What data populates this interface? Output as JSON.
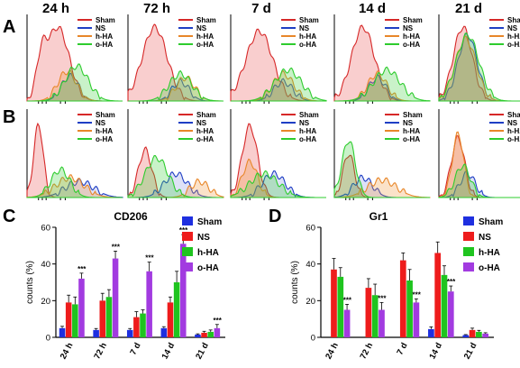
{
  "panel_letters": {
    "a": "A",
    "b": "B",
    "c": "C",
    "d": "D"
  },
  "timepoints": [
    "24 h",
    "72 h",
    "7 d",
    "14 d",
    "21 d"
  ],
  "histogram_legend": [
    "Sham",
    "NS",
    "h-HA",
    "o-HA"
  ],
  "colors": {
    "sham": "#d62828",
    "ns": "#1f3fc4",
    "hha": "#e8872a",
    "oha": "#2ecc2e",
    "bar_sham": "#1e2fe0",
    "bar_ns": "#ee1c1c",
    "bar_hha": "#1fc41f",
    "bar_oha": "#a23be0"
  },
  "chart_data": [
    {
      "type": "bar",
      "panel": "C",
      "title": "CD206",
      "ylabel": "counts (%)",
      "xlabel": "",
      "ylim": [
        0,
        60
      ],
      "yticks": [
        "0",
        "20",
        "40",
        "60"
      ],
      "categories": [
        "24 h",
        "72 h",
        "7 d",
        "14 d",
        "21 d"
      ],
      "series": [
        {
          "name": "Sham",
          "values": [
            5,
            4,
            4,
            5,
            1.5
          ],
          "errors": [
            1,
            0.8,
            0.8,
            0.8,
            0.4
          ]
        },
        {
          "name": "NS",
          "values": [
            19,
            20,
            11,
            19,
            2.5
          ],
          "errors": [
            4,
            4,
            3,
            3,
            0.8
          ]
        },
        {
          "name": "h-HA",
          "values": [
            18,
            22,
            13,
            30,
            3
          ],
          "errors": [
            4,
            4,
            2,
            6,
            1
          ]
        },
        {
          "name": "o-HA",
          "values": [
            32,
            43,
            36,
            51,
            5
          ],
          "errors": [
            3,
            4,
            5,
            5,
            2
          ]
        }
      ],
      "significance": [
        "***",
        "***",
        "***",
        "***",
        "***"
      ],
      "legend": [
        "Sham",
        "NS",
        "h-HA",
        "o-HA"
      ]
    },
    {
      "type": "bar",
      "panel": "D",
      "title": "Gr1",
      "ylabel": "counts (%)",
      "xlabel": "",
      "ylim": [
        0,
        60
      ],
      "yticks": [
        "0",
        "20",
        "40",
        "60"
      ],
      "categories": [
        "24 h",
        "72 h",
        "7 d",
        "14 d",
        "21 d"
      ],
      "series": [
        {
          "name": "Sham",
          "values": [
            0,
            0,
            0,
            4.5,
            1.2
          ],
          "errors": [
            0,
            0,
            0,
            1.2,
            0.3
          ]
        },
        {
          "name": "NS",
          "values": [
            37,
            27,
            42,
            46,
            4
          ],
          "errors": [
            6,
            5,
            4,
            6,
            1
          ]
        },
        {
          "name": "h-HA",
          "values": [
            33,
            23,
            31,
            34,
            3
          ],
          "errors": [
            5,
            6,
            6,
            5,
            0.8
          ]
        },
        {
          "name": "o-HA",
          "values": [
            15,
            15,
            19,
            25,
            2
          ],
          "errors": [
            3,
            4,
            2,
            3,
            0.5
          ]
        }
      ],
      "significance": [
        "***",
        "***",
        "***",
        "***",
        ""
      ],
      "legend": [
        "Sham",
        "NS",
        "h-HA",
        "o-HA"
      ]
    }
  ]
}
